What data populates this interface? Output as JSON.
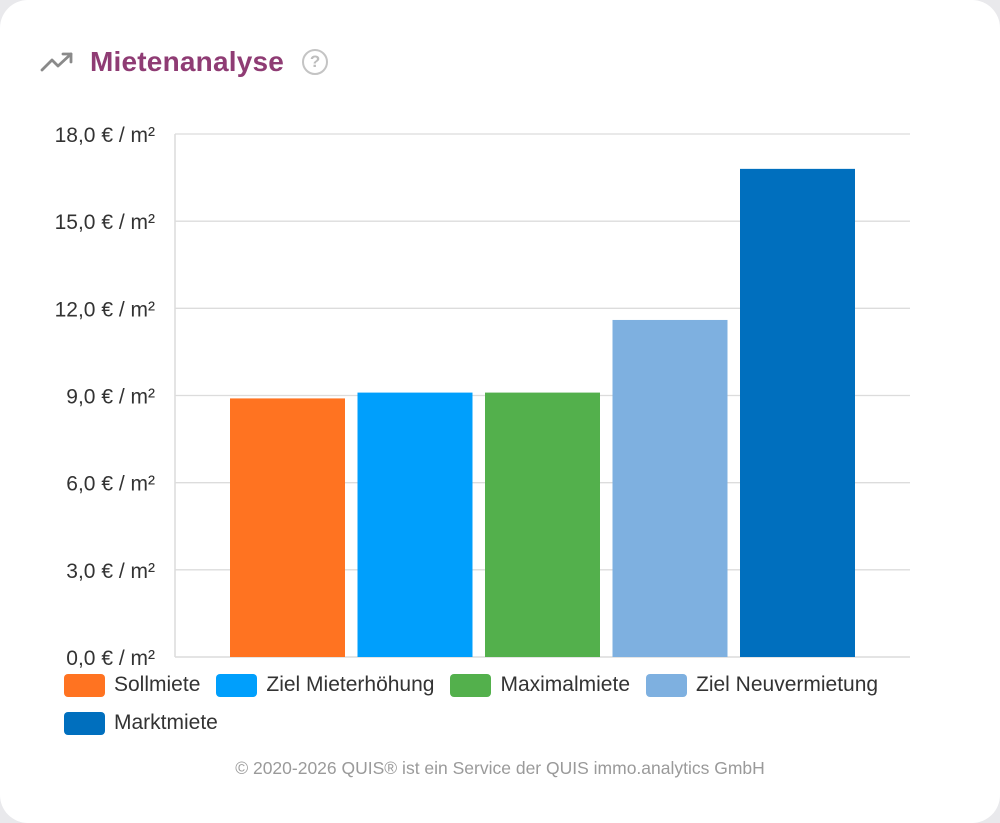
{
  "header": {
    "title": "Mietenanalyse",
    "help_symbol": "?",
    "trend_icon": "trending-up-icon",
    "help_icon": "help-circle-icon"
  },
  "colors": {
    "title": "#8f3c74",
    "grid": "#dcdcdc",
    "axis_text": "#333333"
  },
  "chart_data": {
    "type": "bar",
    "title": "",
    "xlabel": "",
    "ylabel": "",
    "categories": [
      "Sollmiete",
      "Ziel Mieterhöhung",
      "Maximalmiete",
      "Ziel Neuvermietung",
      "Marktmiete"
    ],
    "values": [
      8.9,
      9.1,
      9.1,
      11.6,
      16.8
    ],
    "colors": [
      "#ff7321",
      "#009ffc",
      "#53b04c",
      "#7eb0e0",
      "#006fbe"
    ],
    "ylim": [
      0,
      18
    ],
    "yticks": [
      0,
      3,
      6,
      9,
      12,
      15,
      18
    ],
    "ytick_labels": [
      "0,0 € / m²",
      "3,0 € / m²",
      "6,0 € / m²",
      "9,0 € / m²",
      "12,0 € / m²",
      "15,0 € / m²",
      "18,0 € / m²"
    ],
    "grid": true,
    "legend_position": "bottom"
  },
  "footer": {
    "text": "© 2020-2026 QUIS® ist ein Service der QUIS immo.analytics GmbH"
  }
}
